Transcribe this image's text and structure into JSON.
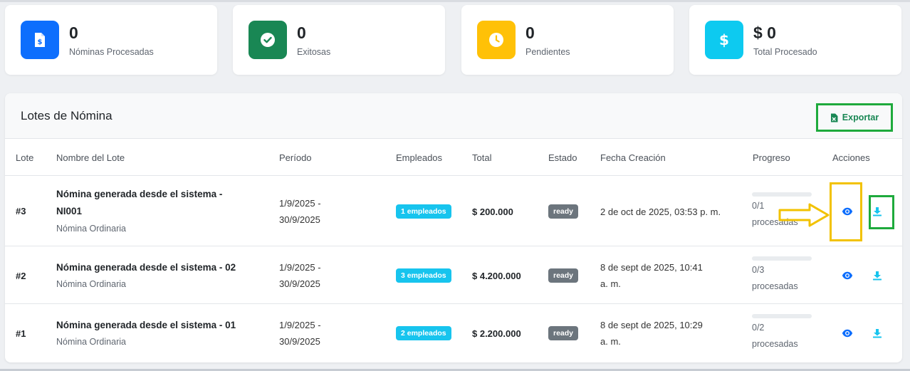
{
  "stats": [
    {
      "value": "0",
      "label": "Nóminas Procesadas",
      "icon": "payroll-document-icon",
      "color": "#0d6efd"
    },
    {
      "value": "0",
      "label": "Exitosas",
      "icon": "check-circle-icon",
      "color": "#198754"
    },
    {
      "value": "0",
      "label": "Pendientes",
      "icon": "clock-icon",
      "color": "#ffc107"
    },
    {
      "value": "$ 0",
      "label": "Total Procesado",
      "icon": "dollar-icon",
      "color": "#0dcaf0"
    }
  ],
  "panel": {
    "title": "Lotes de Nómina",
    "export_label": "Exportar",
    "columns": [
      "Lote",
      "Nombre del Lote",
      "Período",
      "Empleados",
      "Total",
      "Estado",
      "Fecha Creación",
      "Progreso",
      "Acciones"
    ]
  },
  "rows": [
    {
      "lote": "#3",
      "name_line1": "Nómina generada desde el sistema -",
      "name_line2": "NI001",
      "type": "Nómina Ordinaria",
      "periodo_line1": "1/9/2025 -",
      "periodo_line2": "30/9/2025",
      "empleados": "1 empleados",
      "total": "$ 200.000",
      "estado": "ready",
      "fecha_line1": "2 de oct de 2025, 03:53 p. m.",
      "fecha_line2": "",
      "progress_fraction": 0,
      "progress_line1": "0/1",
      "progress_line2": "procesadas"
    },
    {
      "lote": "#2",
      "name_line1": "Nómina generada desde el sistema - 02",
      "name_line2": "",
      "type": "Nómina Ordinaria",
      "periodo_line1": "1/9/2025 -",
      "periodo_line2": "30/9/2025",
      "empleados": "3 empleados",
      "total": "$ 4.200.000",
      "estado": "ready",
      "fecha_line1": "8 de sept de 2025, 10:41",
      "fecha_line2": "a. m.",
      "progress_fraction": 0,
      "progress_line1": "0/3",
      "progress_line2": "procesadas"
    },
    {
      "lote": "#1",
      "name_line1": "Nómina generada desde el sistema - 01",
      "name_line2": "",
      "type": "Nómina Ordinaria",
      "periodo_line1": "1/9/2025 -",
      "periodo_line2": "30/9/2025",
      "empleados": "2 empleados",
      "total": "$ 2.200.000",
      "estado": "ready",
      "fecha_line1": "8 de sept de 2025, 10:29",
      "fecha_line2": "a. m.",
      "progress_fraction": 0,
      "progress_line1": "0/2",
      "progress_line2": "procesadas"
    }
  ],
  "actions": {
    "view_icon": "eye-icon",
    "download_icon": "download-icon"
  },
  "colors": {
    "view": "#0d6efd",
    "download": "#17c4ee",
    "highlight_yellow": "#f2c200",
    "highlight_green": "#1eaa3c"
  }
}
